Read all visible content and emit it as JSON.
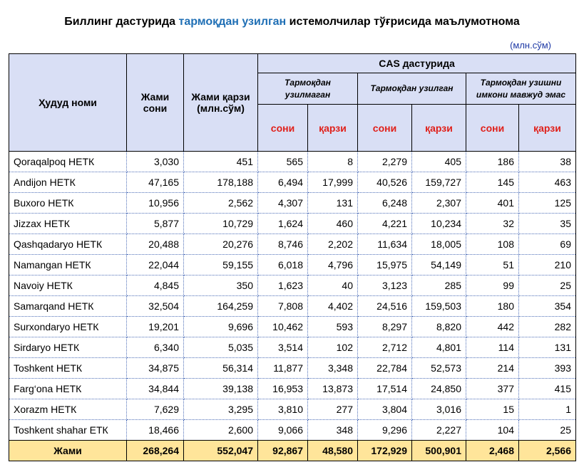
{
  "title": {
    "part1": "Биллинг дастурида",
    "part2": "тармоқдан узилган",
    "part3": "истемолчилар тўғрисида маълумотнома"
  },
  "unit": "(млн.сўм)",
  "headers": {
    "region": "Ҳудуд номи",
    "total_count": "Жами сони",
    "total_debt": "Жами қарзи (млн.сўм)",
    "cas": "CAS дастурида",
    "groups": [
      "Тармоқдан узилмаган",
      "Тармоқдан узилган",
      "Тармоқдан узишни имкони мавжуд эмас"
    ],
    "count_label": "сони",
    "debt_label": "қарзи"
  },
  "rows": [
    [
      "Qoraqalpoq НЕТК",
      "3,030",
      "451",
      "565",
      "8",
      "2,279",
      "405",
      "186",
      "38"
    ],
    [
      "Andijon НЕТК",
      "47,165",
      "178,188",
      "6,494",
      "17,999",
      "40,526",
      "159,727",
      "145",
      "463"
    ],
    [
      "Buxoro НЕТК",
      "10,956",
      "2,562",
      "4,307",
      "131",
      "6,248",
      "2,307",
      "401",
      "125"
    ],
    [
      "Jizzax НЕТК",
      "5,877",
      "10,729",
      "1,624",
      "460",
      "4,221",
      "10,234",
      "32",
      "35"
    ],
    [
      "Qashqadaryo НЕТК",
      "20,488",
      "20,276",
      "8,746",
      "2,202",
      "11,634",
      "18,005",
      "108",
      "69"
    ],
    [
      "Namangan НЕТК",
      "22,044",
      "59,155",
      "6,018",
      "4,796",
      "15,975",
      "54,149",
      "51",
      "210"
    ],
    [
      "Navoiy НЕТК",
      "4,845",
      "350",
      "1,623",
      "40",
      "3,123",
      "285",
      "99",
      "25"
    ],
    [
      "Samarqand НЕТК",
      "32,504",
      "164,259",
      "7,808",
      "4,402",
      "24,516",
      "159,503",
      "180",
      "354"
    ],
    [
      "Surxondaryo НЕТК",
      "19,201",
      "9,696",
      "10,462",
      "593",
      "8,297",
      "8,820",
      "442",
      "282"
    ],
    [
      "Sirdaryo НЕТК",
      "6,340",
      "5,035",
      "3,514",
      "102",
      "2,712",
      "4,801",
      "114",
      "131"
    ],
    [
      "Toshkent НЕТК",
      "34,875",
      "56,314",
      "11,877",
      "3,348",
      "22,784",
      "52,573",
      "214",
      "393"
    ],
    [
      "Farg‘ona НЕТК",
      "34,844",
      "39,138",
      "16,953",
      "13,873",
      "17,514",
      "24,850",
      "377",
      "415"
    ],
    [
      "Xorazm НЕТК",
      "7,629",
      "3,295",
      "3,810",
      "277",
      "3,804",
      "3,016",
      "15",
      "1"
    ],
    [
      "Toshkent shahar ЕТК",
      "18,466",
      "2,600",
      "9,066",
      "348",
      "9,296",
      "2,227",
      "104",
      "25"
    ]
  ],
  "total": [
    "Жами",
    "268,264",
    "552,047",
    "92,867",
    "48,580",
    "172,929",
    "500,901",
    "2,468",
    "2,566"
  ]
}
